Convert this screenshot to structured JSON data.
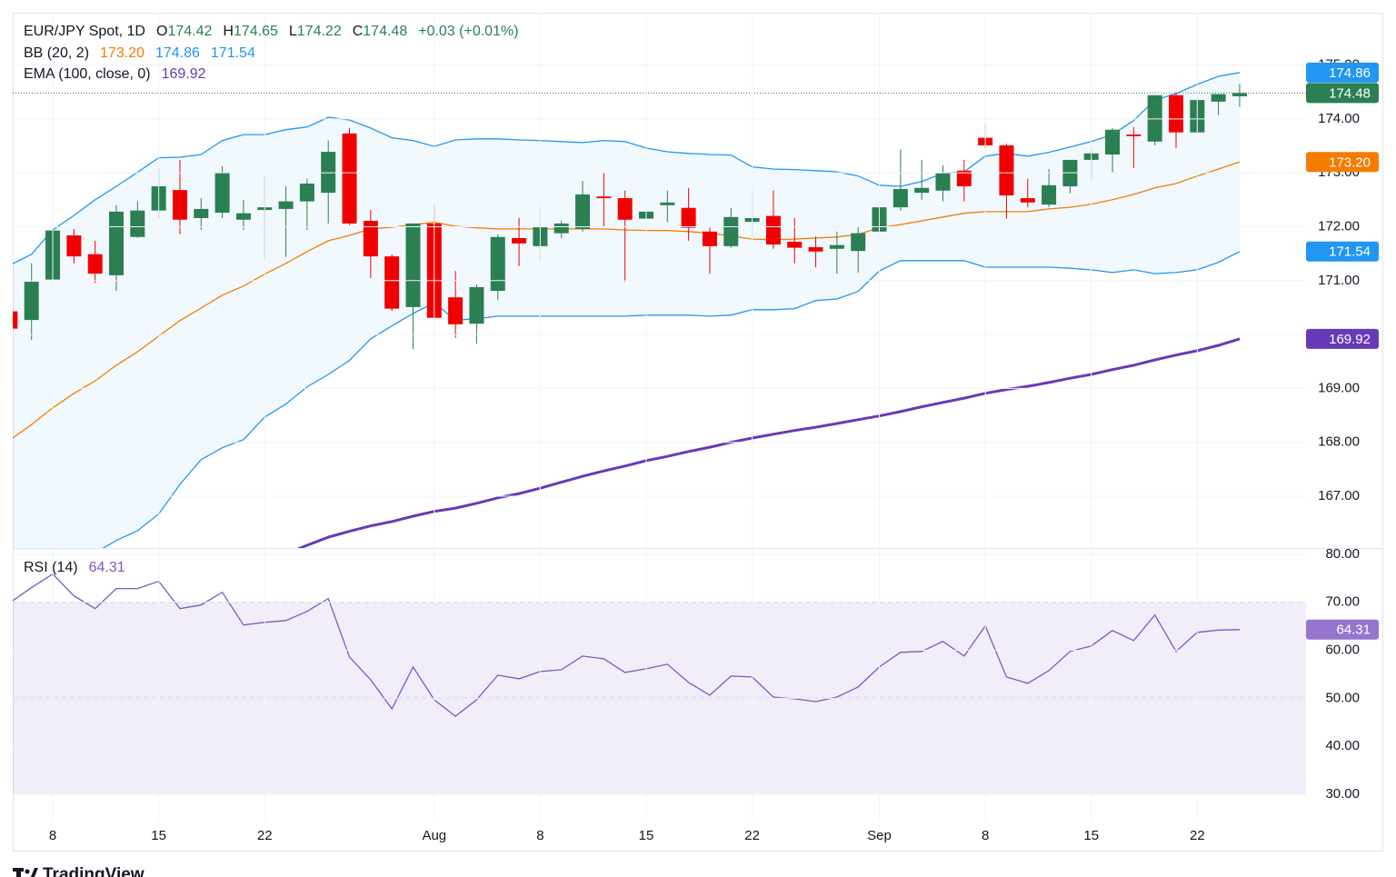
{
  "chart_data": [
    {
      "type": "candlestick",
      "title": "EUR/JPY Spot, 1D",
      "ohlc_labels": [
        {
          "label": "O",
          "value": "174.42"
        },
        {
          "label": "H",
          "value": "174.65"
        },
        {
          "label": "L",
          "value": "174.22"
        },
        {
          "label": "C",
          "value": "174.48"
        }
      ],
      "change": "+0.03 (+0.01%)",
      "up_color": "#2b7f52",
      "down_color": "#f00000",
      "categories": [
        null,
        null,
        "8",
        null,
        null,
        null,
        null,
        "15",
        null,
        null,
        null,
        null,
        "22",
        null,
        null,
        null,
        null,
        null,
        null,
        null,
        "Aug",
        null,
        null,
        null,
        null,
        "8",
        null,
        null,
        null,
        null,
        "15",
        null,
        null,
        null,
        null,
        "22",
        null,
        null,
        null,
        null,
        null,
        "Sep",
        null,
        null,
        null,
        null,
        "8",
        null,
        null,
        null,
        null,
        "15",
        null,
        null,
        null,
        null,
        "22",
        null,
        null
      ],
      "open": [
        170.43,
        170.27,
        171.02,
        171.84,
        171.49,
        171.1,
        171.81,
        172.3,
        172.68,
        172.16,
        172.26,
        172.13,
        172.31,
        172.33,
        172.47,
        172.63,
        173.73,
        172.11,
        171.45,
        170.51,
        172.06,
        170.69,
        170.2,
        170.81,
        171.79,
        171.64,
        171.88,
        171.96,
        172.56,
        172.53,
        172.15,
        172.4,
        172.35,
        171.91,
        171.64,
        172.09,
        172.2,
        171.72,
        171.62,
        171.59,
        171.55,
        171.91,
        172.36,
        172.63,
        172.67,
        173.04,
        173.65,
        173.51,
        172.53,
        172.41,
        172.75,
        173.24,
        173.34,
        173.71,
        173.58,
        174.44,
        173.75,
        174.32,
        174.42
      ],
      "high": [
        170.45,
        171.32,
        172.03,
        171.96,
        171.74,
        172.4,
        172.47,
        173.09,
        173.24,
        172.53,
        173.12,
        172.5,
        172.94,
        172.75,
        172.89,
        173.6,
        173.83,
        172.31,
        171.49,
        172.06,
        172.4,
        171.18,
        170.93,
        171.86,
        172.16,
        172.36,
        172.11,
        172.85,
        173.01,
        172.67,
        172.47,
        172.67,
        172.72,
        171.98,
        172.35,
        172.67,
        172.67,
        172.16,
        171.82,
        171.91,
        172.0,
        172.41,
        173.43,
        173.24,
        173.14,
        173.24,
        173.9,
        173.54,
        172.89,
        173.07,
        173.24,
        173.46,
        173.83,
        173.85,
        174.44,
        174.49,
        174.39,
        174.46,
        174.65
      ],
      "low": [
        170.1,
        169.9,
        170.95,
        171.32,
        170.96,
        170.81,
        171.79,
        172.16,
        171.86,
        171.94,
        172.16,
        171.94,
        171.4,
        171.44,
        171.94,
        172.06,
        172.03,
        171.05,
        170.44,
        169.73,
        170.27,
        169.94,
        169.83,
        170.64,
        171.27,
        171.35,
        171.79,
        171.91,
        172.0,
        170.98,
        172.03,
        172.08,
        171.74,
        171.13,
        171.61,
        171.82,
        171.59,
        171.32,
        171.25,
        171.13,
        171.15,
        171.82,
        172.3,
        172.5,
        172.47,
        172.47,
        173.43,
        172.15,
        172.36,
        172.36,
        172.62,
        172.89,
        173.0,
        173.09,
        173.51,
        173.46,
        173.71,
        174.07,
        174.22
      ],
      "close": [
        170.11,
        170.98,
        171.93,
        171.45,
        171.13,
        172.28,
        172.3,
        172.75,
        172.13,
        172.33,
        173.01,
        172.25,
        172.36,
        172.47,
        172.8,
        173.39,
        172.06,
        171.45,
        170.48,
        172.06,
        170.31,
        170.19,
        170.88,
        171.81,
        171.69,
        171.99,
        172.06,
        172.6,
        172.53,
        172.13,
        172.28,
        172.45,
        171.98,
        171.64,
        172.18,
        172.16,
        171.67,
        171.61,
        171.54,
        171.66,
        171.88,
        172.36,
        172.7,
        172.72,
        172.99,
        172.75,
        173.51,
        172.58,
        172.45,
        172.77,
        173.24,
        173.36,
        173.8,
        173.68,
        174.44,
        173.75,
        174.35,
        174.46,
        174.48
      ],
      "ylim": [
        166.04,
        175.97
      ],
      "yticks": [
        {
          "value": 167,
          "label": "167.00"
        },
        {
          "value": 168,
          "label": "168.00"
        },
        {
          "value": 169,
          "label": "169.00"
        },
        {
          "value": 170,
          "label": "170.00"
        },
        {
          "value": 171,
          "label": "171.00"
        },
        {
          "value": 172,
          "label": "172.00"
        },
        {
          "value": 173,
          "label": "173.00"
        },
        {
          "value": 174,
          "label": "174.00"
        },
        {
          "value": 175,
          "label": "175.00"
        }
      ],
      "grid": true,
      "indicators": [
        {
          "name": "BB (20, 2)",
          "labels": [
            "173.20",
            "174.86",
            "171.54"
          ],
          "fill": "rgba(33,150,243,0.06)",
          "lines": [
            {
              "color": "#f57c00",
              "values": [
                168.05,
                168.33,
                168.64,
                168.91,
                169.14,
                169.43,
                169.68,
                169.97,
                170.26,
                170.49,
                170.73,
                170.9,
                171.12,
                171.32,
                171.54,
                171.74,
                171.84,
                171.96,
                171.99,
                172.04,
                172.08,
                172.01,
                171.98,
                171.96,
                171.96,
                171.96,
                171.96,
                171.96,
                171.96,
                171.94,
                171.93,
                171.93,
                171.91,
                171.88,
                171.83,
                171.77,
                171.76,
                171.77,
                171.79,
                171.81,
                171.86,
                171.98,
                172.04,
                172.11,
                172.18,
                172.25,
                172.28,
                172.28,
                172.28,
                172.33,
                172.36,
                172.42,
                172.5,
                172.6,
                172.72,
                172.8,
                172.94,
                173.07,
                173.2
              ]
            },
            {
              "color": "#2196f3",
              "values": [
                171.29,
                171.49,
                171.94,
                172.21,
                172.5,
                172.75,
                173.01,
                173.28,
                173.29,
                173.34,
                173.6,
                173.71,
                173.71,
                173.8,
                173.85,
                174.03,
                173.98,
                173.83,
                173.65,
                173.6,
                173.49,
                173.61,
                173.63,
                173.63,
                173.61,
                173.6,
                173.58,
                173.56,
                173.6,
                173.58,
                173.46,
                173.39,
                173.36,
                173.34,
                173.33,
                173.11,
                173.07,
                173.06,
                173.04,
                173.02,
                172.94,
                172.77,
                172.75,
                172.84,
                172.99,
                173.02,
                173.31,
                173.36,
                173.31,
                173.38,
                173.48,
                173.58,
                173.71,
                173.97,
                174.35,
                174.47,
                174.64,
                174.79,
                174.86
              ]
            },
            {
              "color": "#2196f3",
              "values": [
                null,
                null,
                null,
                null,
                165.95,
                166.18,
                166.36,
                166.67,
                167.22,
                167.68,
                167.9,
                168.05,
                168.47,
                168.71,
                169.03,
                169.26,
                169.52,
                169.92,
                170.16,
                170.39,
                170.59,
                170.27,
                170.29,
                170.34,
                170.34,
                170.34,
                170.34,
                170.34,
                170.34,
                170.34,
                170.36,
                170.36,
                170.36,
                170.34,
                170.36,
                170.46,
                170.46,
                170.48,
                170.63,
                170.66,
                170.8,
                171.18,
                171.37,
                171.37,
                171.37,
                171.37,
                171.25,
                171.25,
                171.25,
                171.25,
                171.23,
                171.2,
                171.15,
                171.2,
                171.13,
                171.15,
                171.2,
                171.34,
                171.54
              ]
            }
          ]
        },
        {
          "name": "EMA (100, close, 0)",
          "labels": [
            "169.92"
          ],
          "lines": [
            {
              "color": "#673ab7",
              "values": [
                null,
                null,
                null,
                null,
                null,
                null,
                null,
                null,
                null,
                null,
                null,
                null,
                null,
                165.93,
                166.09,
                166.24,
                166.35,
                166.45,
                166.53,
                166.63,
                166.72,
                166.78,
                166.87,
                166.97,
                167.05,
                167.15,
                167.26,
                167.37,
                167.47,
                167.56,
                167.66,
                167.74,
                167.83,
                167.91,
                168.0,
                168.08,
                168.15,
                168.22,
                168.28,
                168.35,
                168.42,
                168.49,
                168.57,
                168.66,
                168.74,
                168.82,
                168.91,
                168.98,
                169.04,
                169.11,
                169.19,
                169.26,
                169.35,
                169.43,
                169.53,
                169.62,
                169.7,
                169.8,
                169.92
              ]
            }
          ]
        }
      ]
    },
    {
      "type": "line",
      "title": "RSI (14)",
      "value_label": "64.31",
      "color": "#7e57c2",
      "band_color": "rgba(126,87,194,0.1)",
      "values": [
        70.0,
        73.04,
        75.88,
        71.33,
        68.67,
        72.85,
        72.85,
        74.37,
        68.67,
        69.43,
        72.09,
        65.26,
        65.82,
        66.2,
        68.1,
        70.76,
        58.61,
        53.87,
        47.79,
        56.52,
        49.69,
        46.27,
        49.69,
        54.82,
        54.06,
        55.58,
        55.96,
        58.8,
        58.23,
        55.39,
        56.14,
        57.09,
        53.3,
        50.64,
        54.63,
        54.44,
        50.26,
        49.88,
        49.31,
        50.26,
        52.35,
        56.52,
        59.56,
        59.75,
        61.84,
        58.8,
        65.07,
        54.44,
        53.11,
        55.77,
        59.75,
        60.89,
        64.12,
        62.03,
        67.34,
        59.75,
        63.74,
        64.2,
        64.31
      ],
      "ylim": [
        24.7,
        81.3
      ],
      "yticks": [
        {
          "value": 30,
          "label": "30.00"
        },
        {
          "value": 40,
          "label": "40.00"
        },
        {
          "value": 50,
          "label": "50.00"
        },
        {
          "value": 60,
          "label": "60.00"
        },
        {
          "value": 70,
          "label": "70.00"
        },
        {
          "value": 80,
          "label": "80.00"
        }
      ],
      "grid": true,
      "band": [
        30,
        70
      ],
      "dashed": [
        70,
        50,
        30
      ]
    }
  ],
  "footer": {
    "brand": "TradingView"
  }
}
